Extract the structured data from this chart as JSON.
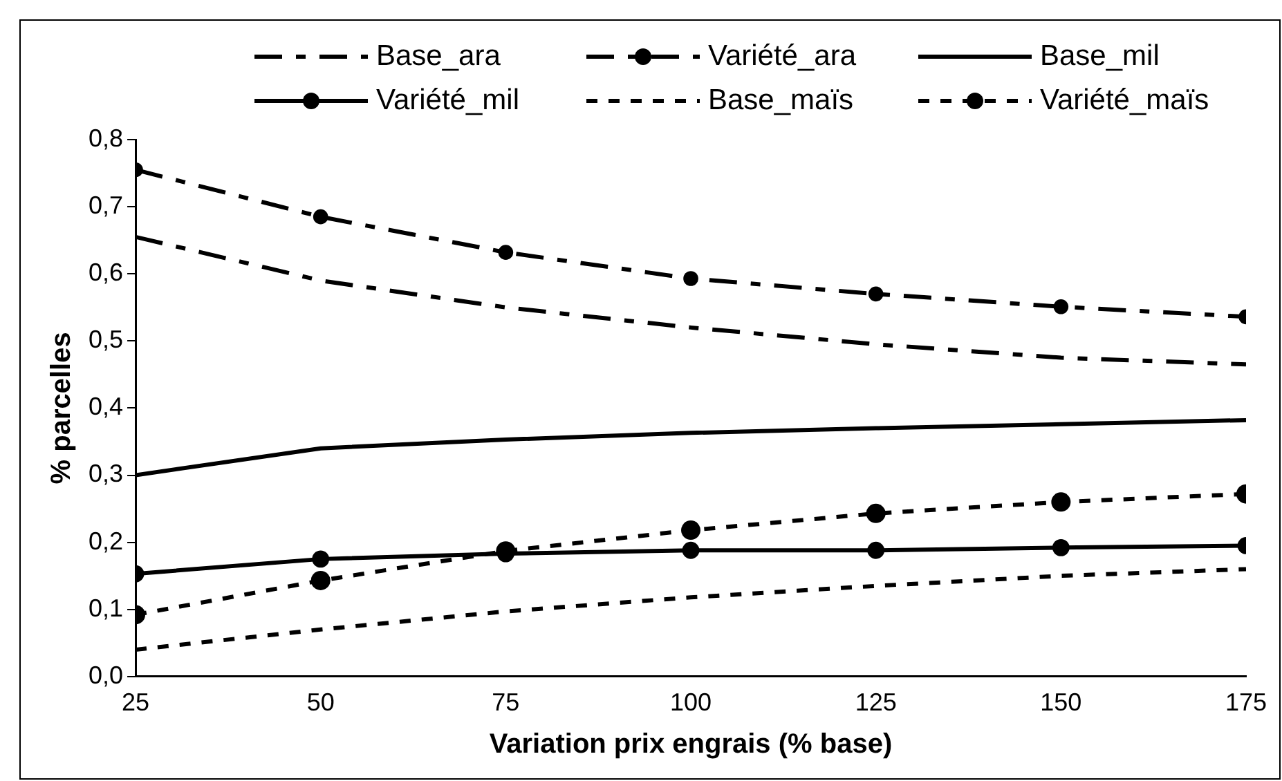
{
  "chart_data": {
    "type": "line",
    "xlabel": "Variation prix engrais (% base)",
    "ylabel": "% parcelles",
    "x": [
      25,
      50,
      75,
      100,
      125,
      150,
      175
    ],
    "xlim": [
      25,
      175
    ],
    "xticks": [
      25,
      50,
      75,
      100,
      125,
      150,
      175
    ],
    "ylim": [
      0,
      0.8
    ],
    "yticks": [
      {
        "value": 0,
        "label": "0,0"
      },
      {
        "value": 0.1,
        "label": "0,1"
      },
      {
        "value": 0.2,
        "label": "0,2"
      },
      {
        "value": 0.3,
        "label": "0,3"
      },
      {
        "value": 0.4,
        "label": "0,4"
      },
      {
        "value": 0.5,
        "label": "0,5"
      },
      {
        "value": 0.6,
        "label": "0,6"
      },
      {
        "value": 0.7,
        "label": "0,7"
      },
      {
        "value": 0.8,
        "label": "0,8"
      }
    ],
    "grid": false,
    "legend": "top",
    "series": [
      {
        "name": "Base_ara",
        "color": "#000000",
        "line_style": "dashed",
        "marker": "none",
        "values": [
          0.655,
          0.59,
          0.55,
          0.52,
          0.495,
          0.475,
          0.465
        ]
      },
      {
        "name": "Variété_ara",
        "color": "#000000",
        "line_style": "dashed",
        "marker": "circle",
        "values": [
          0.755,
          0.685,
          0.632,
          0.593,
          0.57,
          0.551,
          0.536
        ]
      },
      {
        "name": "Base_mil",
        "color": "#000000",
        "line_style": "solid",
        "marker": "none",
        "values": [
          0.3,
          0.34,
          0.353,
          0.363,
          0.37,
          0.376,
          0.382
        ]
      },
      {
        "name": "Variété_mil",
        "color": "#000000",
        "line_style": "solid",
        "marker": "circle",
        "values": [
          0.153,
          0.175,
          0.183,
          0.188,
          0.188,
          0.192,
          0.195
        ]
      },
      {
        "name": "Base_maïs",
        "color": "#000000",
        "line_style": "dotted",
        "marker": "none",
        "values": [
          0.04,
          0.07,
          0.097,
          0.118,
          0.135,
          0.15,
          0.16
        ]
      },
      {
        "name": "Variété_maïs",
        "color": "#000000",
        "line_style": "dotted",
        "marker": "circle",
        "values": [
          0.092,
          0.143,
          0.187,
          0.218,
          0.243,
          0.26,
          0.272
        ]
      }
    ]
  }
}
